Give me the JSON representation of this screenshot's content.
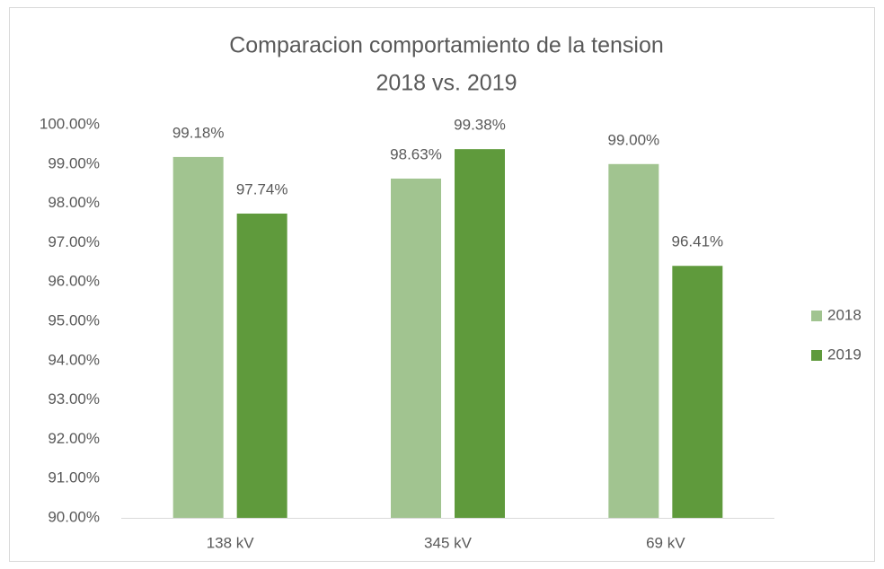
{
  "chart_data": {
    "type": "bar",
    "title": "Comparacion comportamiento de la tension",
    "subtitle": "2018 vs. 2019",
    "categories": [
      "138 kV",
      "345 kV",
      "69 kV"
    ],
    "series": [
      {
        "name": "2018",
        "color": "#a1c490",
        "values": [
          99.18,
          98.63,
          99.0
        ],
        "value_labels": [
          "99.18%",
          "98.63%",
          "99.00%"
        ]
      },
      {
        "name": "2019",
        "color": "#5f9a3c",
        "values": [
          97.74,
          99.38,
          96.41
        ],
        "value_labels": [
          "97.74%",
          "99.38%",
          "96.41%"
        ]
      }
    ],
    "ylim": [
      90,
      100
    ],
    "yticks": [
      {
        "value": 90,
        "label": "90.00%"
      },
      {
        "value": 91,
        "label": "91.00%"
      },
      {
        "value": 92,
        "label": "92.00%"
      },
      {
        "value": 93,
        "label": "93.00%"
      },
      {
        "value": 94,
        "label": "94.00%"
      },
      {
        "value": 95,
        "label": "95.00%"
      },
      {
        "value": 96,
        "label": "96.00%"
      },
      {
        "value": 97,
        "label": "97.00%"
      },
      {
        "value": 98,
        "label": "98.00%"
      },
      {
        "value": 99,
        "label": "99.00%"
      },
      {
        "value": 100,
        "label": "100.00%"
      }
    ],
    "grid": false,
    "legend": "right"
  }
}
